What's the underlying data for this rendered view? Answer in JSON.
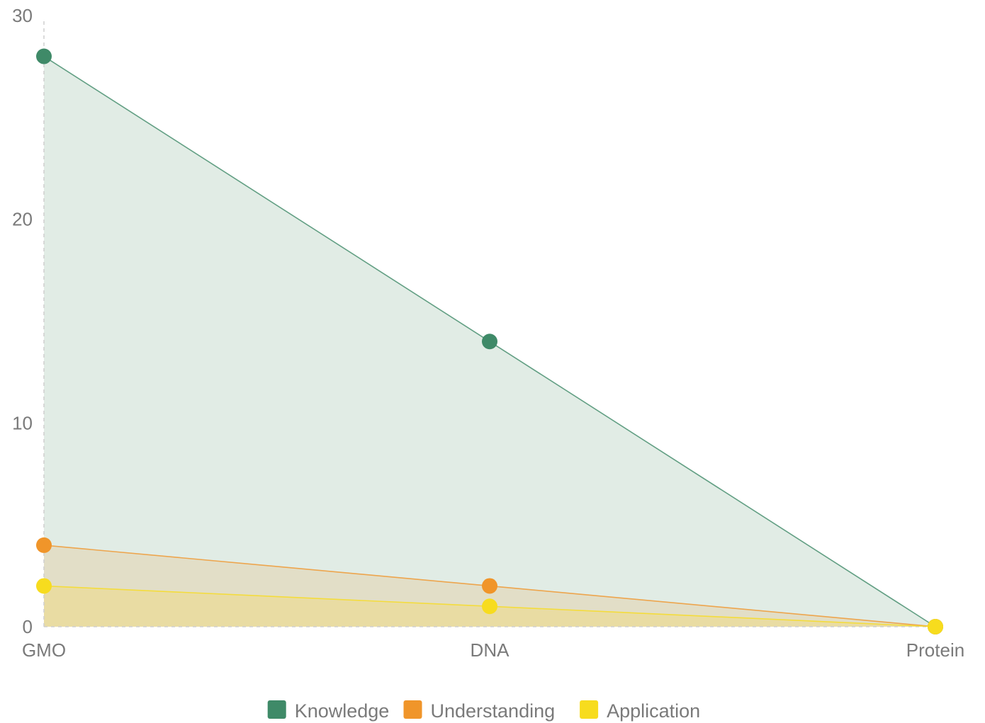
{
  "chart_data": {
    "type": "area",
    "categories": [
      "GMO",
      "DNA",
      "Protein"
    ],
    "series": [
      {
        "name": "Knowledge",
        "values": [
          28,
          14,
          0
        ],
        "color": "#3f8a68",
        "fill": "#dce9e0"
      },
      {
        "name": "Understanding",
        "values": [
          4,
          2,
          0
        ],
        "color": "#f0952a",
        "fill": "#e2dcc2"
      },
      {
        "name": "Application",
        "values": [
          2,
          1,
          0
        ],
        "color": "#f7dc1e",
        "fill": "#eadc9c"
      }
    ],
    "yticks": [
      0,
      10,
      20,
      30
    ],
    "ylim": [
      0,
      30
    ],
    "legend_position": "bottom",
    "title": "",
    "xlabel": "",
    "ylabel": ""
  }
}
